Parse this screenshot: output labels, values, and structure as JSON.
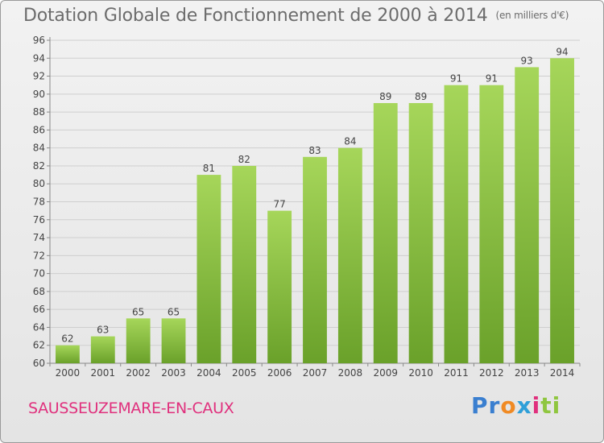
{
  "header": {
    "title": "Dotation Globale de Fonctionnement de 2000 à 2014",
    "unit": "(en milliers d'€)"
  },
  "footer": {
    "commune": "SAUSSEUZEMARE-EN-CAUX",
    "logo": [
      "Pr",
      "o",
      "x",
      "i",
      "ti"
    ]
  },
  "colors": {
    "bar_light": "#a6d65a",
    "bar_dark": "#6aa12a",
    "grid": "#cfcfcf",
    "title": "#6c6c6c",
    "commune": "#e0307d"
  },
  "chart_data": {
    "type": "bar",
    "title": "Dotation Globale de Fonctionnement de 2000 à 2014",
    "xlabel": "",
    "ylabel": "",
    "ylim": [
      60,
      96
    ],
    "ytick_step": 2,
    "grid": true,
    "categories": [
      "2000",
      "2001",
      "2002",
      "2003",
      "2004",
      "2005",
      "2006",
      "2007",
      "2008",
      "2009",
      "2010",
      "2011",
      "2012",
      "2013",
      "2014"
    ],
    "values": [
      62,
      63,
      65,
      65,
      81,
      82,
      77,
      83,
      84,
      89,
      89,
      91,
      91,
      93,
      94
    ]
  }
}
